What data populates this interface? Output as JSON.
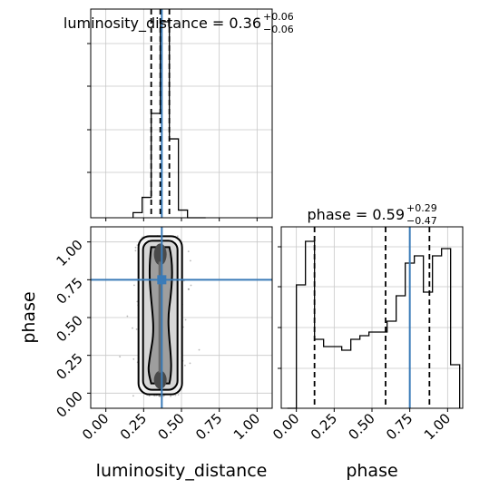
{
  "chart_data": {
    "type": "corner",
    "truth": {
      "luminosity_distance": 0.37,
      "phase": 0.75
    },
    "grid": true,
    "axis_ranges": {
      "luminosity_distance": [
        -0.1,
        1.1
      ],
      "phase": [
        -0.1,
        1.1
      ]
    },
    "ticks": {
      "luminosity_distance": [
        "0.00",
        "0.25",
        "0.50",
        "0.75",
        "1.00"
      ],
      "phase": [
        "0.00",
        "0.25",
        "0.50",
        "0.75",
        "1.00"
      ]
    },
    "panels": [
      {
        "id": "hist_luminosity_distance",
        "type": "histogram",
        "parameter": "luminosity_distance",
        "title_text": "luminosity_distance = 0.36",
        "title_value": "0.36",
        "title_plus": "+0.06",
        "title_minus": "−0.06",
        "quantiles": [
          0.3,
          0.36,
          0.42
        ],
        "bin_edges": [
          0.18,
          0.24,
          0.3,
          0.36,
          0.42,
          0.48,
          0.54,
          0.6,
          0.66
        ],
        "counts": [
          2,
          8,
          41,
          77,
          31,
          3,
          0,
          0
        ],
        "ylim": [
          0,
          82
        ]
      },
      {
        "id": "hist_phase",
        "type": "histogram",
        "parameter": "phase",
        "title_text": "phase = 0.59",
        "title_value": "0.59",
        "title_plus": "+0.29",
        "title_minus": "−0.47",
        "quantiles": [
          0.12,
          0.59,
          0.88
        ],
        "bin_edges": [
          -0.06,
          0.0,
          0.06,
          0.12,
          0.18,
          0.24,
          0.3,
          0.36,
          0.42,
          0.48,
          0.54,
          0.6,
          0.66,
          0.72,
          0.78,
          0.84,
          0.9,
          0.96,
          1.02,
          1.08
        ],
        "counts": [
          0,
          34,
          46,
          19,
          17,
          17,
          16,
          19,
          20,
          21,
          21,
          24,
          31,
          40,
          42,
          32,
          42,
          44,
          12
        ],
        "ylim": [
          0,
          50
        ]
      },
      {
        "id": "joint",
        "type": "2d-density",
        "x": "luminosity_distance",
        "y": "phase",
        "xlabel": "luminosity_distance",
        "ylabel": "phase",
        "density_centre": {
          "x": 0.36,
          "y": 0.5
        },
        "density_extent": {
          "x": [
            0.22,
            0.52
          ],
          "y": [
            -0.02,
            1.05
          ]
        }
      }
    ]
  }
}
